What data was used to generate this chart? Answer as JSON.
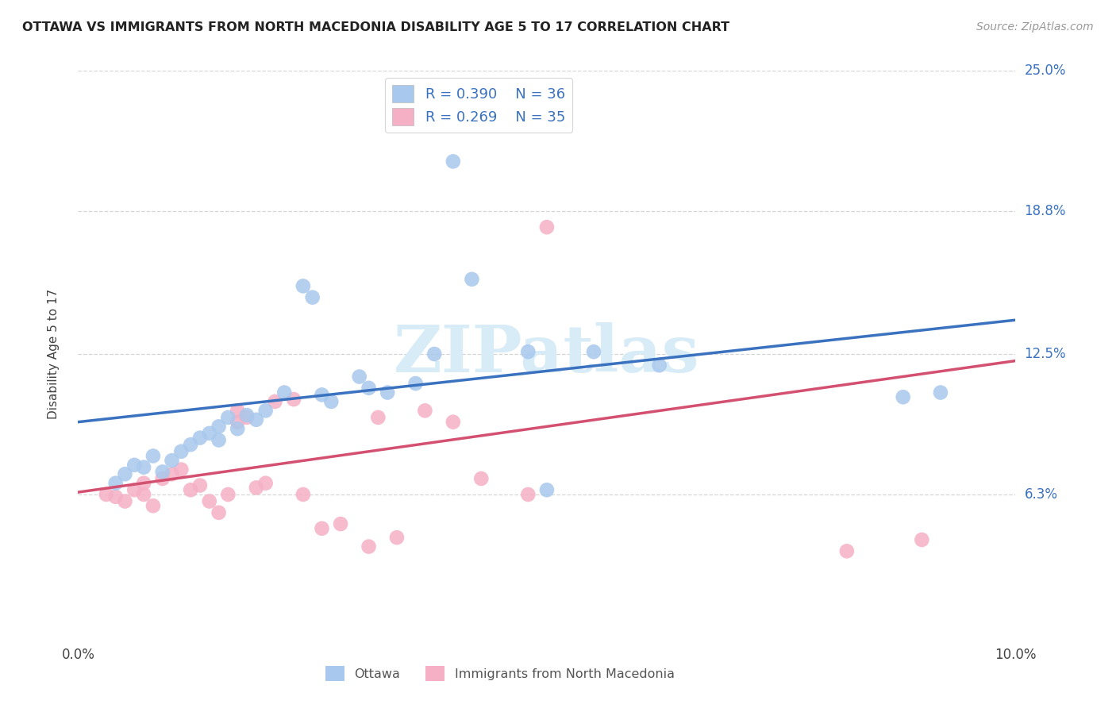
{
  "title": "OTTAWA VS IMMIGRANTS FROM NORTH MACEDONIA DISABILITY AGE 5 TO 17 CORRELATION CHART",
  "source": "Source: ZipAtlas.com",
  "ylabel": "Disability Age 5 to 17",
  "xlim": [
    0.0,
    0.1
  ],
  "ylim": [
    0.0,
    0.25
  ],
  "ytick_vals": [
    0.063,
    0.125,
    0.188,
    0.25
  ],
  "ytick_labels": [
    "6.3%",
    "12.5%",
    "18.8%",
    "25.0%"
  ],
  "xtick_vals": [
    0.0,
    0.02,
    0.04,
    0.06,
    0.08,
    0.1
  ],
  "xtick_labels": [
    "0.0%",
    "",
    "",
    "",
    "",
    "10.0%"
  ],
  "legend_R_blue": "R = 0.390",
  "legend_N_blue": "N = 36",
  "legend_R_pink": "R = 0.269",
  "legend_N_pink": "N = 35",
  "blue_line_x0": 0.0,
  "blue_line_y0": 0.095,
  "blue_line_x1": 0.1,
  "blue_line_y1": 0.14,
  "pink_line_x0": 0.0,
  "pink_line_y0": 0.064,
  "pink_line_x1": 0.1,
  "pink_line_y1": 0.122,
  "blue_scatter_x": [
    0.004,
    0.005,
    0.006,
    0.007,
    0.008,
    0.009,
    0.01,
    0.011,
    0.012,
    0.013,
    0.014,
    0.015,
    0.015,
    0.016,
    0.017,
    0.018,
    0.019,
    0.02,
    0.022,
    0.024,
    0.025,
    0.026,
    0.027,
    0.03,
    0.031,
    0.033,
    0.036,
    0.038,
    0.04,
    0.042,
    0.048,
    0.05,
    0.055,
    0.062,
    0.088,
    0.092
  ],
  "blue_scatter_y": [
    0.068,
    0.072,
    0.076,
    0.075,
    0.08,
    0.073,
    0.078,
    0.082,
    0.085,
    0.088,
    0.09,
    0.093,
    0.087,
    0.097,
    0.092,
    0.098,
    0.096,
    0.1,
    0.108,
    0.155,
    0.15,
    0.107,
    0.104,
    0.115,
    0.11,
    0.108,
    0.112,
    0.125,
    0.21,
    0.158,
    0.126,
    0.065,
    0.126,
    0.12,
    0.106,
    0.108
  ],
  "pink_scatter_x": [
    0.003,
    0.004,
    0.005,
    0.006,
    0.007,
    0.007,
    0.008,
    0.009,
    0.01,
    0.011,
    0.012,
    0.013,
    0.014,
    0.015,
    0.016,
    0.017,
    0.017,
    0.018,
    0.019,
    0.02,
    0.021,
    0.023,
    0.024,
    0.026,
    0.028,
    0.031,
    0.032,
    0.034,
    0.037,
    0.04,
    0.043,
    0.048,
    0.05,
    0.082,
    0.09
  ],
  "pink_scatter_y": [
    0.063,
    0.062,
    0.06,
    0.065,
    0.063,
    0.068,
    0.058,
    0.07,
    0.072,
    0.074,
    0.065,
    0.067,
    0.06,
    0.055,
    0.063,
    0.095,
    0.1,
    0.097,
    0.066,
    0.068,
    0.104,
    0.105,
    0.063,
    0.048,
    0.05,
    0.04,
    0.097,
    0.044,
    0.1,
    0.095,
    0.07,
    0.063,
    0.181,
    0.038,
    0.043
  ],
  "blue_color": "#A8C8ED",
  "pink_color": "#F5B0C5",
  "blue_line_color": "#3A72C0",
  "pink_line_color": "#D45070",
  "blue_text_color": "#3A72C0",
  "watermark_text": "ZIPatlas",
  "watermark_color": "#D8ECF8",
  "background_color": "#FFFFFF",
  "grid_color": "#CCCCCC"
}
